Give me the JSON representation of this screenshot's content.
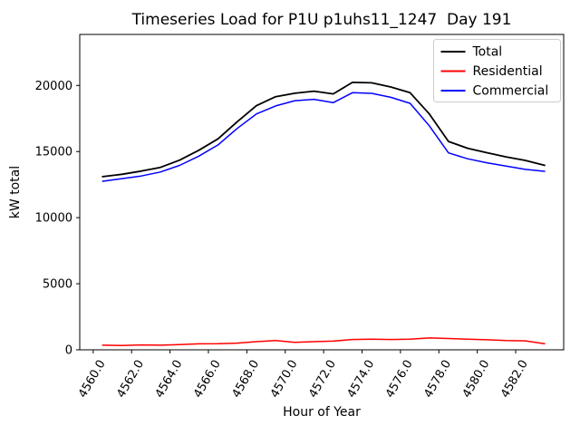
{
  "figure": {
    "background": "#ffffff",
    "axes_edge_color": "#000000",
    "legend_edge_color": "#cccccc"
  },
  "chart_data": {
    "type": "line",
    "title": "Timeseries Load for P1U p1uhs11_1247  Day 191",
    "xlabel": "Hour of Year",
    "ylabel": "kW total",
    "grid": false,
    "legend_position": "upper right",
    "xlim": [
      4559.3,
      4584.5
    ],
    "ylim": [
      0,
      23860
    ],
    "xticks": {
      "values": [
        4560,
        4562,
        4564,
        4566,
        4568,
        4570,
        4572,
        4574,
        4576,
        4578,
        4580,
        4582
      ],
      "labels": [
        "4560.0",
        "4562.0",
        "4564.0",
        "4566.0",
        "4568.0",
        "4570.0",
        "4572.0",
        "4574.0",
        "4576.0",
        "4578.0",
        "4580.0",
        "4582.0"
      ],
      "rotation": -60
    },
    "yticks": {
      "values": [
        0,
        5000,
        10000,
        15000,
        20000
      ],
      "labels": [
        "0",
        "5000",
        "10000",
        "15000",
        "20000"
      ]
    },
    "x": [
      4560.5,
      4561.5,
      4562.5,
      4563.5,
      4564.5,
      4565.5,
      4566.5,
      4567.5,
      4568.5,
      4569.5,
      4570.5,
      4571.5,
      4572.5,
      4573.5,
      4574.5,
      4575.5,
      4576.5,
      4577.5,
      4578.5,
      4579.5,
      4580.5,
      4581.5,
      4582.5,
      4583.5
    ],
    "series": [
      {
        "name": "Total",
        "color": "#000000",
        "line_width": 1.8,
        "values": [
          13100,
          13280,
          13520,
          13800,
          14350,
          15100,
          15960,
          17260,
          18470,
          19150,
          19410,
          19570,
          19360,
          20230,
          20200,
          19880,
          19450,
          17850,
          15760,
          15250,
          14910,
          14600,
          14330,
          13960
        ]
      },
      {
        "name": "Residential",
        "color": "#ff0000",
        "line_width": 1.5,
        "values": [
          350,
          330,
          370,
          350,
          400,
          450,
          460,
          510,
          620,
          700,
          560,
          620,
          660,
          780,
          800,
          780,
          800,
          900,
          860,
          800,
          760,
          700,
          680,
          460
        ]
      },
      {
        "name": "Commercial",
        "color": "#0000ff",
        "line_width": 1.5,
        "values": [
          12750,
          12950,
          13150,
          13450,
          13950,
          14650,
          15500,
          16750,
          17850,
          18450,
          18850,
          18950,
          18700,
          19450,
          19400,
          19100,
          18650,
          16950,
          14900,
          14450,
          14150,
          13900,
          13650,
          13500
        ]
      }
    ]
  }
}
